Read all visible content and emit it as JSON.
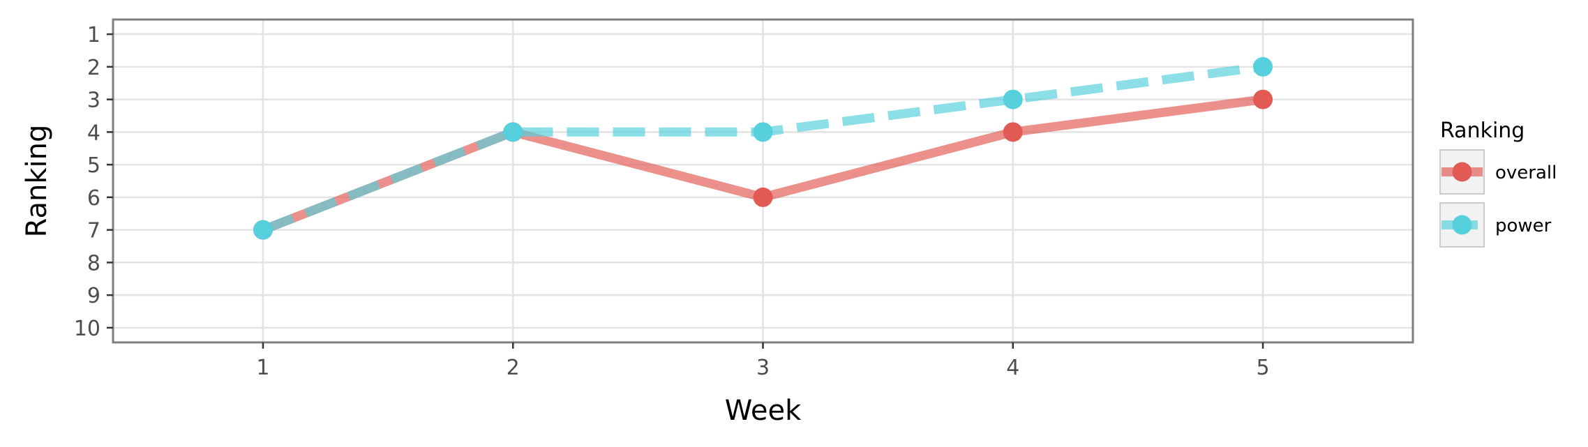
{
  "chart_data": {
    "type": "line",
    "title": "",
    "xlabel": "Week",
    "ylabel": "Ranking",
    "x": [
      1,
      2,
      3,
      4,
      5
    ],
    "x_ticks": [
      "1",
      "2",
      "3",
      "4",
      "5"
    ],
    "xlim": [
      0.4,
      5.6
    ],
    "y_ticks": [
      "1",
      "2",
      "3",
      "4",
      "5",
      "6",
      "7",
      "8",
      "9",
      "10"
    ],
    "ylim": [
      10.45,
      0.55
    ],
    "y_reversed": true,
    "grid": true,
    "legend": {
      "title": "Ranking",
      "placement": "right"
    },
    "series": [
      {
        "name": "overall",
        "values": [
          7,
          4,
          6,
          4,
          3
        ],
        "color": "#e15b54",
        "line_style": "solid"
      },
      {
        "name": "power",
        "values": [
          7,
          4,
          4,
          3,
          2
        ],
        "color": "#56d0dc",
        "line_style": "dashed"
      }
    ]
  }
}
